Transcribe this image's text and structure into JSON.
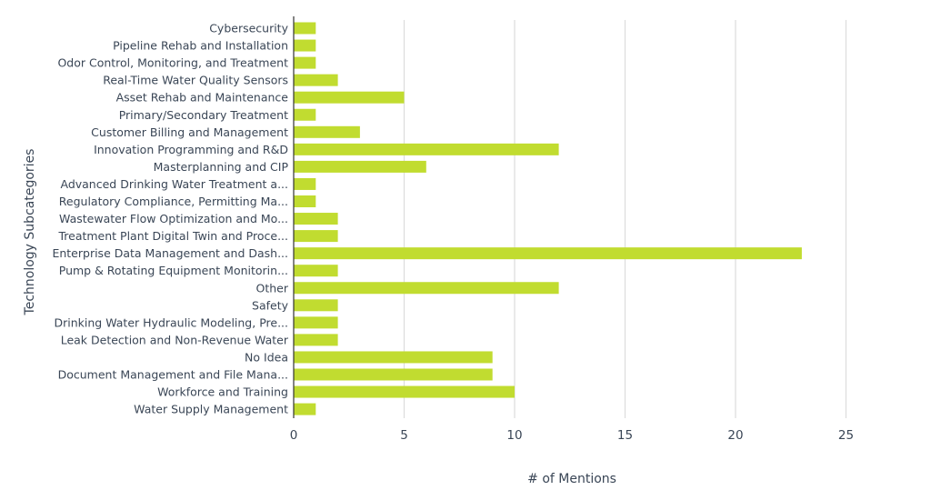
{
  "chart_data": {
    "type": "bar",
    "orientation": "horizontal",
    "categories": [
      "Cybersecurity",
      "Pipeline Rehab and Installation",
      "Odor Control, Monitoring, and Treatment",
      "Real-Time Water Quality Sensors",
      "Asset Rehab and Maintenance",
      "Primary/Secondary Treatment",
      "Customer Billing and Management",
      "Innovation Programming and R&D",
      "Masterplanning and CIP",
      "Advanced Drinking Water Treatment a...",
      "Regulatory Compliance, Permitting Ma...",
      "Wastewater Flow Optimization and Mo...",
      "Treatment Plant Digital Twin and Proce...",
      "Enterprise Data Management and Dash...",
      "Pump & Rotating Equipment Monitorin...",
      "Other",
      "Safety",
      "Drinking Water Hydraulic Modeling, Pre...",
      "Leak Detection and Non-Revenue Water",
      "No Idea",
      "Document Management and File Mana...",
      "Workforce and Training",
      "Water Supply Management"
    ],
    "values": [
      1,
      1,
      1,
      2,
      5,
      1,
      3,
      12,
      6,
      1,
      1,
      2,
      2,
      23,
      2,
      12,
      2,
      2,
      2,
      9,
      9,
      10,
      1
    ],
    "xlabel": "# of Mentions",
    "ylabel": "Technology Subcategories",
    "xlim": [
      0,
      27
    ],
    "xticks": [
      0,
      5,
      10,
      15,
      20,
      25
    ],
    "xtick_labels": [
      "0",
      "5",
      "10",
      "15",
      "20",
      "25"
    ],
    "grid": true,
    "bar_color": "#c1dc30"
  }
}
